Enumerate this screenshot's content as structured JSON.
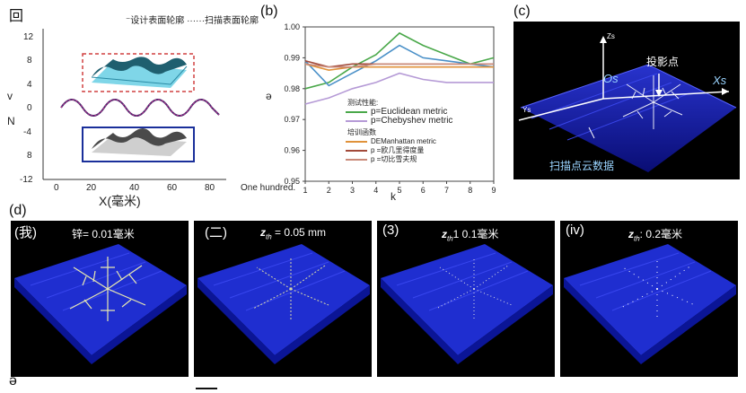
{
  "panel_a": {
    "label": "回",
    "legend_design": "设计表面轮廓",
    "legend_scan": "扫描表面轮廓",
    "ylabel_top": "v",
    "ylabel_bottom": "N",
    "yticks": [
      "12",
      "8",
      "4",
      "0",
      "-4",
      "8",
      "-12"
    ],
    "xticks": [
      "0",
      "20",
      "40",
      "60",
      "80"
    ],
    "xlabel": "X(毫米)"
  },
  "panel_b": {
    "label": "(b)",
    "ylabel": "ə",
    "xlabel": "k",
    "first_tick_text": "One hundred.",
    "legend_title_1": "测试性能:",
    "legend_title_2": "培训函数",
    "series_labels": {
      "euclidean": "p=Euclidean metric",
      "chebyshev": "p=Chebyshev metric",
      "manhattan": "DEManhattan metric",
      "rough1": "p =欧几里得度量",
      "rough2": "p =切比雪夫规"
    }
  },
  "chart_data": {
    "type": "line",
    "x": [
      1,
      2,
      3,
      4,
      5,
      6,
      7,
      8,
      9
    ],
    "ylim": [
      0.95,
      1.0
    ],
    "yticks": [
      "1.00",
      "0.99",
      "0.98",
      "0.97",
      "0.96",
      "0.95"
    ],
    "xticks": [
      "1",
      "2",
      "3",
      "4",
      "5",
      "6",
      "7",
      "8",
      "9"
    ],
    "series": [
      {
        "name": "p=Euclidean metric",
        "color": "#4aa84a",
        "values": [
          0.98,
          0.982,
          0.987,
          0.991,
          0.998,
          0.994,
          0.991,
          0.988,
          0.99
        ]
      },
      {
        "name": "",
        "color": "#4a90c8",
        "values": [
          0.989,
          0.981,
          0.985,
          0.989,
          0.994,
          0.99,
          0.989,
          0.988,
          0.987
        ]
      },
      {
        "name": "p=Chebyshev metric",
        "color": "#b59ad6",
        "values": [
          0.975,
          0.977,
          0.98,
          0.982,
          0.985,
          0.983,
          0.982,
          0.982,
          0.982
        ]
      },
      {
        "name": "DEManhattan metric",
        "color": "#e0923a",
        "values": [
          0.988,
          0.986,
          0.987,
          0.987,
          0.987,
          0.987,
          0.987,
          0.987,
          0.987
        ]
      },
      {
        "name": "p =欧几里得度量",
        "color": "#a24a3a",
        "values": [
          0.989,
          0.987,
          0.988,
          0.988,
          0.988,
          0.988,
          0.988,
          0.988,
          0.988
        ]
      },
      {
        "name": "p =切比雪夫规",
        "color": "#c98a7a",
        "values": [
          0.988,
          0.987,
          0.987,
          0.988,
          0.988,
          0.988,
          0.988,
          0.988,
          0.988
        ]
      }
    ]
  },
  "panel_c": {
    "label": "(c)",
    "zs": "Zs",
    "os": "Os",
    "xs": "Xs",
    "ys": "Ys",
    "projection": "投影点",
    "scan_cloud": "扫描点云数据"
  },
  "panel_d": {
    "label": "(d)",
    "sub": [
      {
        "num": "(我)",
        "title": "锌= 0.01毫米"
      },
      {
        "num": "(二)",
        "title_var": "z",
        "title_sub": "th",
        "title_rest": " = 0.05 mm"
      },
      {
        "num": "(3)",
        "title_var": "z",
        "title_sub": "th",
        "title_rest": "1 0.1毫米"
      },
      {
        "num": "(iv)",
        "title_var": "z",
        "title_sub": "th",
        "title_rest": ": 0.2毫米"
      }
    ]
  },
  "panel_e": {
    "label": "ə"
  }
}
